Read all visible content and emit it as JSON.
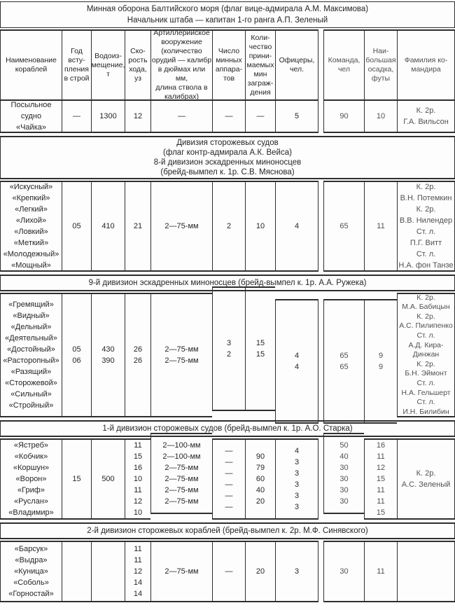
{
  "colors": {
    "border": "#2e2e2e",
    "text": "#262626",
    "faded_text": "#515151",
    "background": "#fdfdfd"
  },
  "title": "Минная оборона Балтийского моря (флаг вице-адмирала А.М. Максимова)\nНачальник штаба — капитан 1-го ранга А.П. Зеленый",
  "headers": {
    "name": "Наименование\nкораблей",
    "year": "Год\nвсту-\nпления\nв строй",
    "displacement": "Водоиз-\nмещение,\nт",
    "speed": "Ско-\nрость\nхода,\nуз",
    "artillery": "Артиллерийское\nвооружение\n(количество\nорудий — калибр\nв дюймах или мм,\nдлина ствола в\nкалибрах)",
    "tubes": "Число\nминных\nаппара-\nтов",
    "mines": "Коли-\nчество\nприни-\nмаемых\nмин\nзаграж-\nдения",
    "officers": "Офицеры,\nчел.",
    "crew": "Команда,\nчел",
    "draft": "Наи-\nбольшая\nосадка,\nфуты",
    "commander": "Фамилия ко-\nмандира"
  },
  "sections": {
    "s1": {
      "row": {
        "name": "Посыльное судно\n«Чайка»",
        "year": "—",
        "displacement": "1300",
        "speed": "12",
        "artillery": "—",
        "tubes": "—",
        "mines": "—",
        "officers": "5",
        "crew": "90",
        "draft": "10",
        "commander": "К. 2р.\nГ.А. Вильсон"
      }
    },
    "s2": {
      "band": "Дивизия сторожевых судов\n(флаг контр-адмирала А.К. Вейса)\n8-й дивизион эскадренных миноносцев\n(брейд-вымпел к. 1р. С.В. Мяснова)",
      "row": {
        "name": "«Искусный»\n«Крепкий»\n«Легкий»\n«Лихой»\n«Ловкий»\n«Меткий»\n«Молодежный»\n«Мощный»",
        "year": "05",
        "displacement": "410",
        "speed": "21",
        "artillery": "2—75-мм",
        "tubes": "2",
        "mines": "10",
        "officers": "4",
        "crew": "65",
        "draft": "11",
        "commander": "К. 2р.\nВ.Н. Потемкин\nК. 2р.\nВ.В. Нилендер\nСт. л.\nП.Г. Витт\nСт. л.\nН.А. фон Танзе"
      }
    },
    "s3": {
      "band": "9-й дивизион эскадренных миноносцев (брейд-вымпел к. 1р. А.А. Ружека)",
      "row": {
        "name": "«Гремящий»\n«Видный»\n«Дельный»\n«Деятельный»\n«Достойный»\n«Расторопный»\n«Разящий»\n«Сторожевой»\n«Сильный»\n«Стройный»",
        "year": "05\n06",
        "displacement": "430\n390",
        "speed": "26\n26",
        "artillery": "2—75-мм\n2—75-мм",
        "tubes": "3\n2",
        "mines": "15\n15",
        "officers": "4\n4",
        "crew": "65\n65",
        "draft": "9\n9",
        "commander": "К. 2р.\nМ.А. Бабицын\nК. 2р.\nА.С. Пилипенко\nСт. л.\nА.Д. Кира-\nДинжан\nК. 2р.\nБ.Н. Эймонт\nСт. л.\nН.А. Гельшерт\nСт. л.\nИ.Н. Билибин"
      }
    },
    "s4": {
      "band": "1-й дивизион сторожевых судов (брейд-вымпел к. 1р. А.О. Старка)",
      "row": {
        "name": "«Ястреб»\n«Кобчик»\n«Коршун»\n«Ворон»\n«Гриф»\n«Руслан»\n«Владимир»",
        "year": "15",
        "displacement": "500",
        "speed": "11\n15\n16\n10\n11\n12\n10",
        "artillery": "2—100-мм\n2—100-мм\n2—75-мм\n2—75-мм\n2—75-мм\n2—75-мм",
        "tubes": "—\n—\n—\n—\n—\n—",
        "mines": "90\n79\n60\n40\n20",
        "officers": "4\n3\n3\n3\n3\n3",
        "crew": "50\n40\n30\n30\n30\n30",
        "draft": "16\n11\n12\n15\n11\n11\n15",
        "commander": "К. 2р.\nА.С. Зеленый"
      }
    },
    "s5": {
      "band": "2-й дивизион сторожевых кораблей (брейд-вымпел к. 2р. М.Ф. Синявского)",
      "row": {
        "name": "«Барсук»\n«Выдра»\n«Куница»\n«Соболь»\n«Горностай»",
        "year": "",
        "displacement": "",
        "speed": "11\n11\n12\n14\n14",
        "artillery": "2—75-мм",
        "tubes": "—",
        "mines": "20",
        "officers": "3",
        "crew": "30",
        "draft": "11",
        "commander": ""
      }
    }
  }
}
